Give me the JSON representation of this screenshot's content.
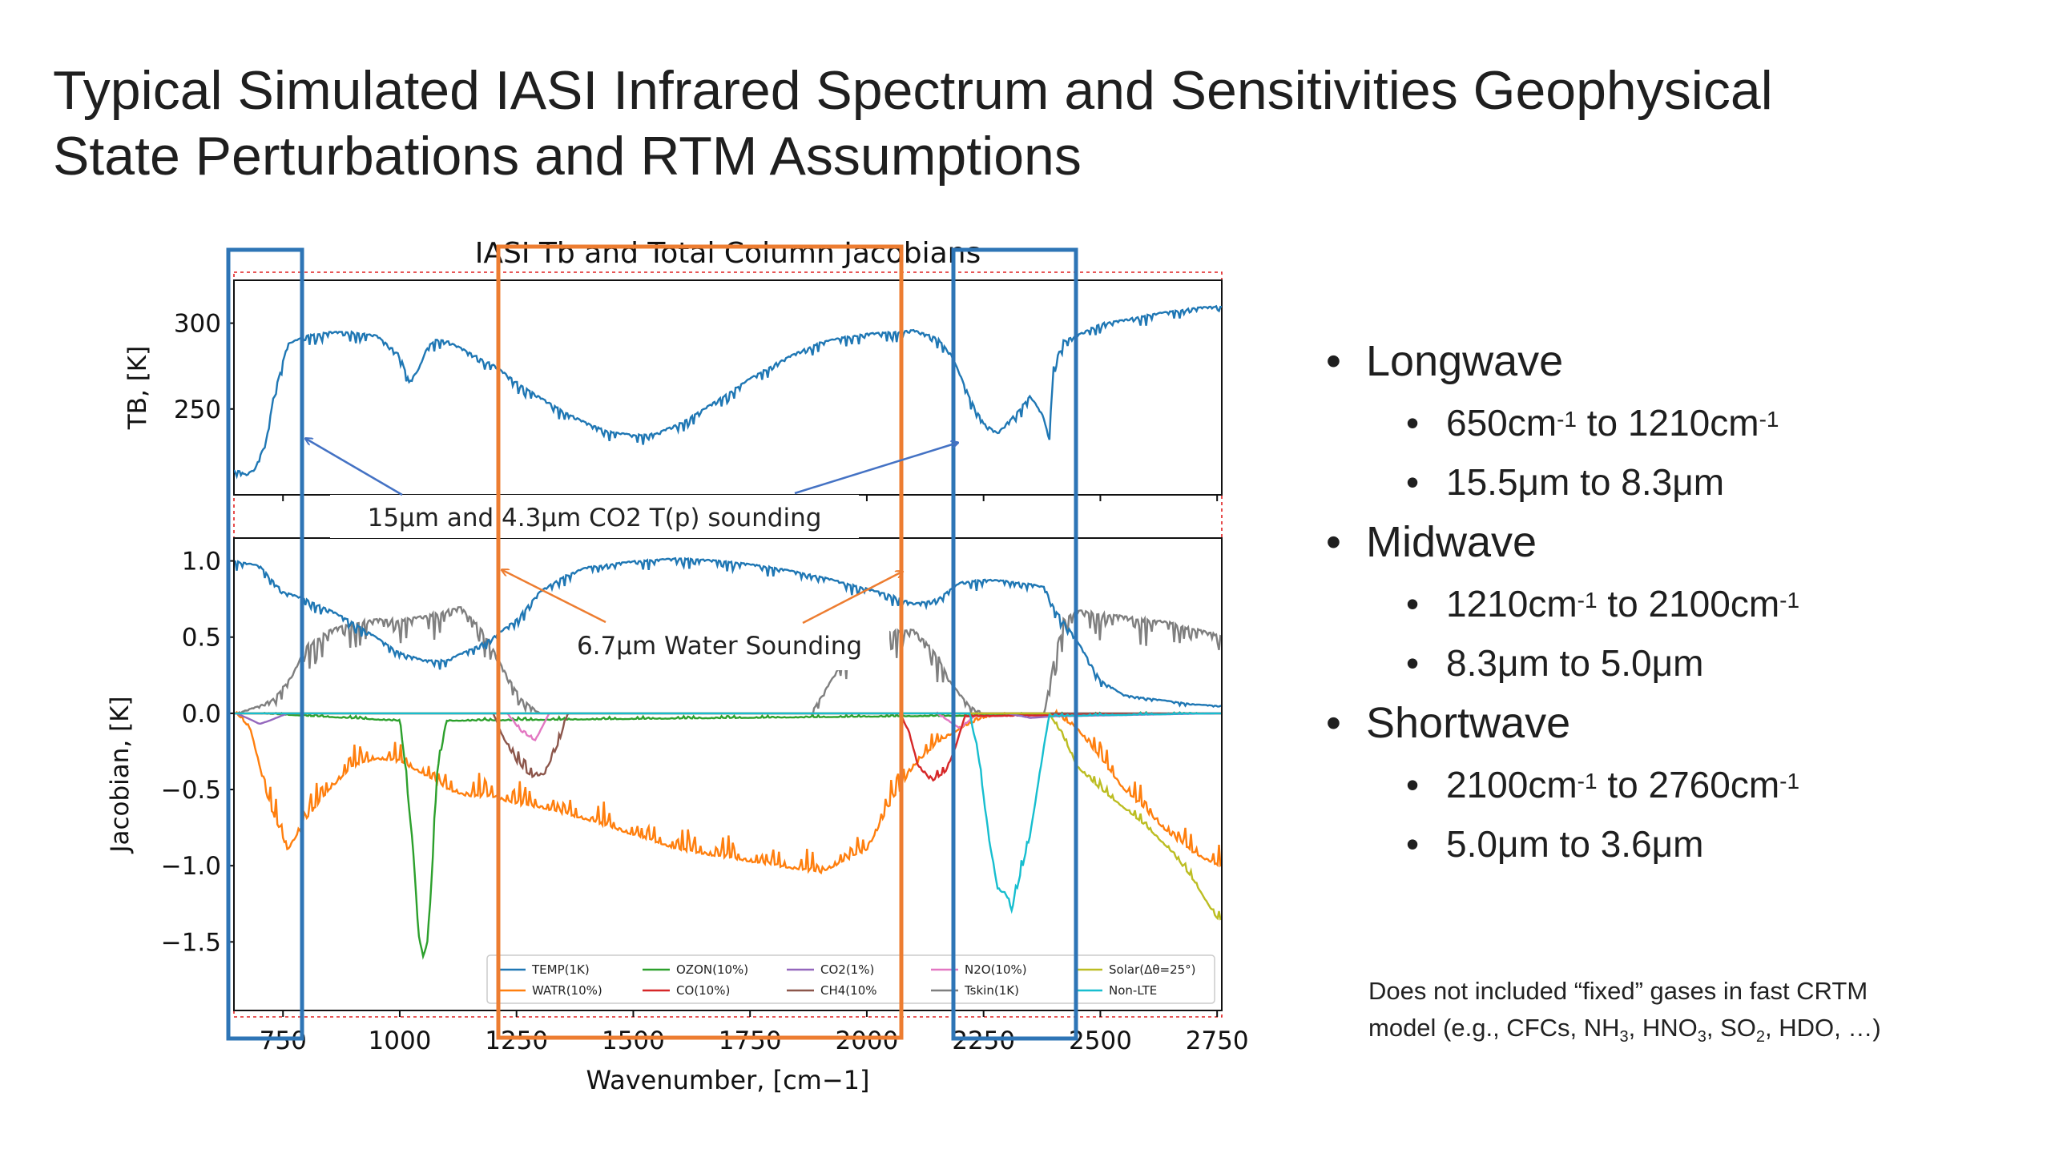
{
  "title": {
    "line1": "Typical Simulated IASI Infrared Spectrum and Sensitivities Geophysical",
    "line2": "State Perturbations and RTM Assumptions"
  },
  "chart_data": {
    "type": "line",
    "title": "IASI Tb and Total Column Jacobians",
    "xlabel": "Wavenumber, [cm−1]",
    "xlim": [
      645,
      2760
    ],
    "xticks": [
      750,
      1000,
      1250,
      1500,
      1750,
      2000,
      2250,
      2500,
      2750
    ],
    "panels": [
      {
        "ylabel": "TB, [K]",
        "ylim": [
          200,
          325
        ],
        "yticks": [
          250,
          300
        ],
        "series": [
          {
            "color": "#1f77b4",
            "x": [
              650,
              670,
              690,
              700,
              715,
              730,
              760,
              800,
              850,
              900,
              950,
              1000,
              1020,
              1040,
              1060,
              1080,
              1100,
              1150,
              1200,
              1250,
              1300,
              1350,
              1400,
              1450,
              1500,
              1550,
              1600,
              1650,
              1700,
              1750,
              1800,
              1850,
              1900,
              1950,
              2000,
              2050,
              2100,
              2150,
              2180,
              2200,
              2220,
              2250,
              2280,
              2320,
              2350,
              2380,
              2390,
              2400,
              2420,
              2450,
              2500,
              2550,
              2600,
              2650,
              2700,
              2750
            ],
            "y": [
              215,
              212,
              215,
              222,
              233,
              258,
              288,
              293,
              295,
              295,
              293,
              282,
              266,
              273,
              287,
              291,
              290,
              283,
              276,
              266,
              257,
              249,
              242,
              237,
              235,
              236,
              242,
              250,
              259,
              268,
              276,
              283,
              289,
              292,
              294,
              295,
              296,
              292,
              282,
              270,
              257,
              242,
              236,
              248,
              258,
              245,
              232,
              275,
              290,
              293,
              300,
              302,
              305,
              307,
              309,
              310
            ],
            "noise": 7
          }
        ]
      },
      {
        "ylabel": "Jacobian, [K]",
        "ylim": [
          -1.95,
          1.15
        ],
        "yticks": [
          1.0,
          0.5,
          0.0,
          -0.5,
          -1.0,
          -1.5
        ],
        "series": [
          {
            "name": "TEMP(1K)",
            "color": "#1f77b4",
            "noise": 0.07,
            "x": [
              650,
              700,
              750,
              800,
              850,
              900,
              950,
              1000,
              1050,
              1100,
              1150,
              1200,
              1250,
              1300,
              1350,
              1400,
              1500,
              1600,
              1700,
              1800,
              1900,
              2000,
              2050,
              2100,
              2150,
              2200,
              2250,
              2300,
              2350,
              2380,
              2400,
              2450,
              2500,
              2550,
              2600,
              2650,
              2700,
              2750
            ],
            "y": [
              1.0,
              0.97,
              0.8,
              0.75,
              0.68,
              0.6,
              0.5,
              0.4,
              0.35,
              0.35,
              0.42,
              0.5,
              0.62,
              0.8,
              0.9,
              0.96,
              1.0,
              1.02,
              1.0,
              0.96,
              0.9,
              0.82,
              0.78,
              0.72,
              0.75,
              0.86,
              0.88,
              0.87,
              0.85,
              0.83,
              0.7,
              0.48,
              0.22,
              0.12,
              0.1,
              0.08,
              0.06,
              0.05
            ]
          },
          {
            "name": "WATR(10%)",
            "color": "#ff7f0e",
            "noise": 0.16,
            "x": [
              650,
              680,
              720,
              760,
              800,
              850,
              900,
              950,
              1000,
              1050,
              1100,
              1150,
              1200,
              1250,
              1300,
              1400,
              1500,
              1600,
              1700,
              1800,
              1900,
              2000,
              2050,
              2100,
              2150,
              2200,
              2250,
              2300,
              2400,
              2450,
              2500,
              2550,
              2600,
              2650,
              2700,
              2750
            ],
            "y": [
              0,
              -0.1,
              -0.6,
              -0.9,
              -0.7,
              -0.5,
              -0.35,
              -0.3,
              -0.32,
              -0.4,
              -0.5,
              -0.55,
              -0.55,
              -0.6,
              -0.62,
              -0.7,
              -0.8,
              -0.9,
              -0.95,
              -1.0,
              -1.05,
              -0.9,
              -0.6,
              -0.35,
              -0.2,
              -0.1,
              -0.03,
              0,
              0,
              -0.1,
              -0.3,
              -0.5,
              -0.65,
              -0.8,
              -0.92,
              -1.0
            ]
          },
          {
            "name": "OZON(10%)",
            "color": "#2ca02c",
            "noise": 0.08,
            "x": [
              650,
              700,
              1000,
              1010,
              1030,
              1040,
              1050,
              1060,
              1070,
              1080,
              1100,
              2750
            ],
            "y": [
              0,
              0,
              -0.05,
              -0.3,
              -0.95,
              -1.45,
              -1.6,
              -1.5,
              -1.0,
              -0.4,
              -0.05,
              0
            ]
          },
          {
            "name": "CO(10%)",
            "color": "#d62728",
            "noise": 0.06,
            "x": [
              650,
              2070,
              2090,
              2110,
              2140,
              2170,
              2190,
              2210,
              2750
            ],
            "y": [
              0,
              0,
              -0.12,
              -0.35,
              -0.45,
              -0.38,
              -0.22,
              -0.02,
              0
            ]
          },
          {
            "name": "CO2(1%)",
            "color": "#9467bd",
            "noise": 0.01,
            "x": [
              650,
              680,
              700,
              720,
              760,
              2300,
              2350,
              2400,
              2750
            ],
            "y": [
              0,
              -0.04,
              -0.07,
              -0.05,
              0,
              0,
              -0.03,
              -0.02,
              0
            ]
          },
          {
            "name": "CH4(10%)",
            "color": "#8c564b",
            "noise": 0.1,
            "x": [
              650,
              1200,
              1220,
              1250,
              1280,
              1310,
              1340,
              1360,
              2750
            ],
            "y": [
              0,
              0,
              -0.15,
              -0.32,
              -0.42,
              -0.4,
              -0.2,
              0,
              0
            ]
          },
          {
            "name": "N2O(10%)",
            "color": "#e377c2",
            "noise": 0.05,
            "x": [
              650,
              1230,
              1260,
              1290,
              1320,
              2150,
              2200,
              2230,
              2750
            ],
            "y": [
              0,
              0,
              -0.12,
              -0.18,
              0,
              0,
              -0.1,
              -0.02,
              0
            ]
          },
          {
            "name": "Tskin(1K)",
            "color": "#7f7f7f",
            "noise": 0.2,
            "x": [
              650,
              700,
              730,
              770,
              800,
              850,
              900,
              950,
              1000,
              1050,
              1100,
              1130,
              1180,
              1220,
              1260,
              1300,
              1880,
              1920,
              1960,
              2000,
              2050,
              2100,
              2150,
              2180,
              2220,
              2250,
              2300,
              2380,
              2400,
              2420,
              2450,
              2500,
              2550,
              2600,
              2650,
              2700,
              2750
            ],
            "y": [
              0,
              0.05,
              0.1,
              0.25,
              0.45,
              0.55,
              0.6,
              0.62,
              0.62,
              0.64,
              0.68,
              0.7,
              0.55,
              0.3,
              0.1,
              0,
              0,
              0.2,
              0.4,
              0.5,
              0.55,
              0.55,
              0.4,
              0.2,
              0.05,
              0,
              0,
              0,
              0.35,
              0.62,
              0.68,
              0.66,
              0.64,
              0.62,
              0.6,
              0.56,
              0.52
            ]
          },
          {
            "name": "Solar(Δθ=25°)",
            "color": "#bcbd22",
            "noise": 0.06,
            "x": [
              650,
              2390,
              2420,
              2450,
              2500,
              2550,
              2600,
              2650,
              2700,
              2730,
              2750
            ],
            "y": [
              0,
              0,
              -0.15,
              -0.35,
              -0.5,
              -0.62,
              -0.75,
              -0.9,
              -1.1,
              -1.25,
              -1.35
            ]
          },
          {
            "name": "Non-LTE",
            "color": "#17becf",
            "noise": 0.08,
            "x": [
              650,
              2220,
              2240,
              2260,
              2280,
              2300,
              2310,
              2330,
              2350,
              2370,
              2390,
              2750
            ],
            "y": [
              0,
              0,
              -0.3,
              -0.8,
              -1.15,
              -1.2,
              -1.3,
              -1.05,
              -0.8,
              -0.4,
              -0.02,
              0
            ]
          }
        ]
      }
    ],
    "legend": {
      "placement": "lower right",
      "columns": [
        [
          "TEMP(1K)",
          "WATR(10%)"
        ],
        [
          "OZON(10%)",
          "CO(10%)"
        ],
        [
          "CO2(1%)",
          "CH4(10%"
        ],
        [
          "N2O(10%)",
          "Tskin(1K)"
        ],
        [
          "Solar(Δθ=25°)",
          "Non-LTE"
        ]
      ]
    },
    "annotations": [
      {
        "text": "15μm and 4.3μm CO2 T(p) sounding",
        "color": "#4472c4"
      },
      {
        "text": "6.7μm Water Sounding",
        "color": "#ed7d31"
      }
    ],
    "highlight_bands": [
      {
        "name": "Longwave",
        "color": "#2e75b6",
        "xmin": 645,
        "xmax": 775
      },
      {
        "name": "Midwave",
        "color": "#ed7d31",
        "xmin": 1210,
        "xmax": 2100
      },
      {
        "name": "Shortwave",
        "color": "#2e75b6",
        "xmin": 2200,
        "xmax": 2460
      }
    ]
  },
  "bullets": [
    {
      "label": "Longwave",
      "items": [
        {
          "a": "650cm",
          "a_sup": "-1",
          "mid": " to 1210cm",
          "b_sup": "-1"
        },
        {
          "text": "15.5μm to 8.3μm"
        }
      ]
    },
    {
      "label": "Midwave",
      "items": [
        {
          "a": "1210cm",
          "a_sup": "-1",
          "mid": " to 2100cm",
          "b_sup": "-1"
        },
        {
          "text": "8.3μm to 5.0μm"
        }
      ]
    },
    {
      "label": "Shortwave",
      "items": [
        {
          "a": "2100cm",
          "a_sup": "-1",
          "mid": " to 2760cm",
          "b_sup": "-1"
        },
        {
          "text": "5.0μm to 3.6μm"
        }
      ]
    }
  ],
  "footnote": {
    "line1": "Does not included “fixed” gases in fast CRTM",
    "p1": "model (e.g., CFCs, NH",
    "s1": "3",
    "p2": ", HNO",
    "s2": "3",
    "p3": ", SO",
    "s3": "2",
    "p4": ", HDO, …)"
  }
}
